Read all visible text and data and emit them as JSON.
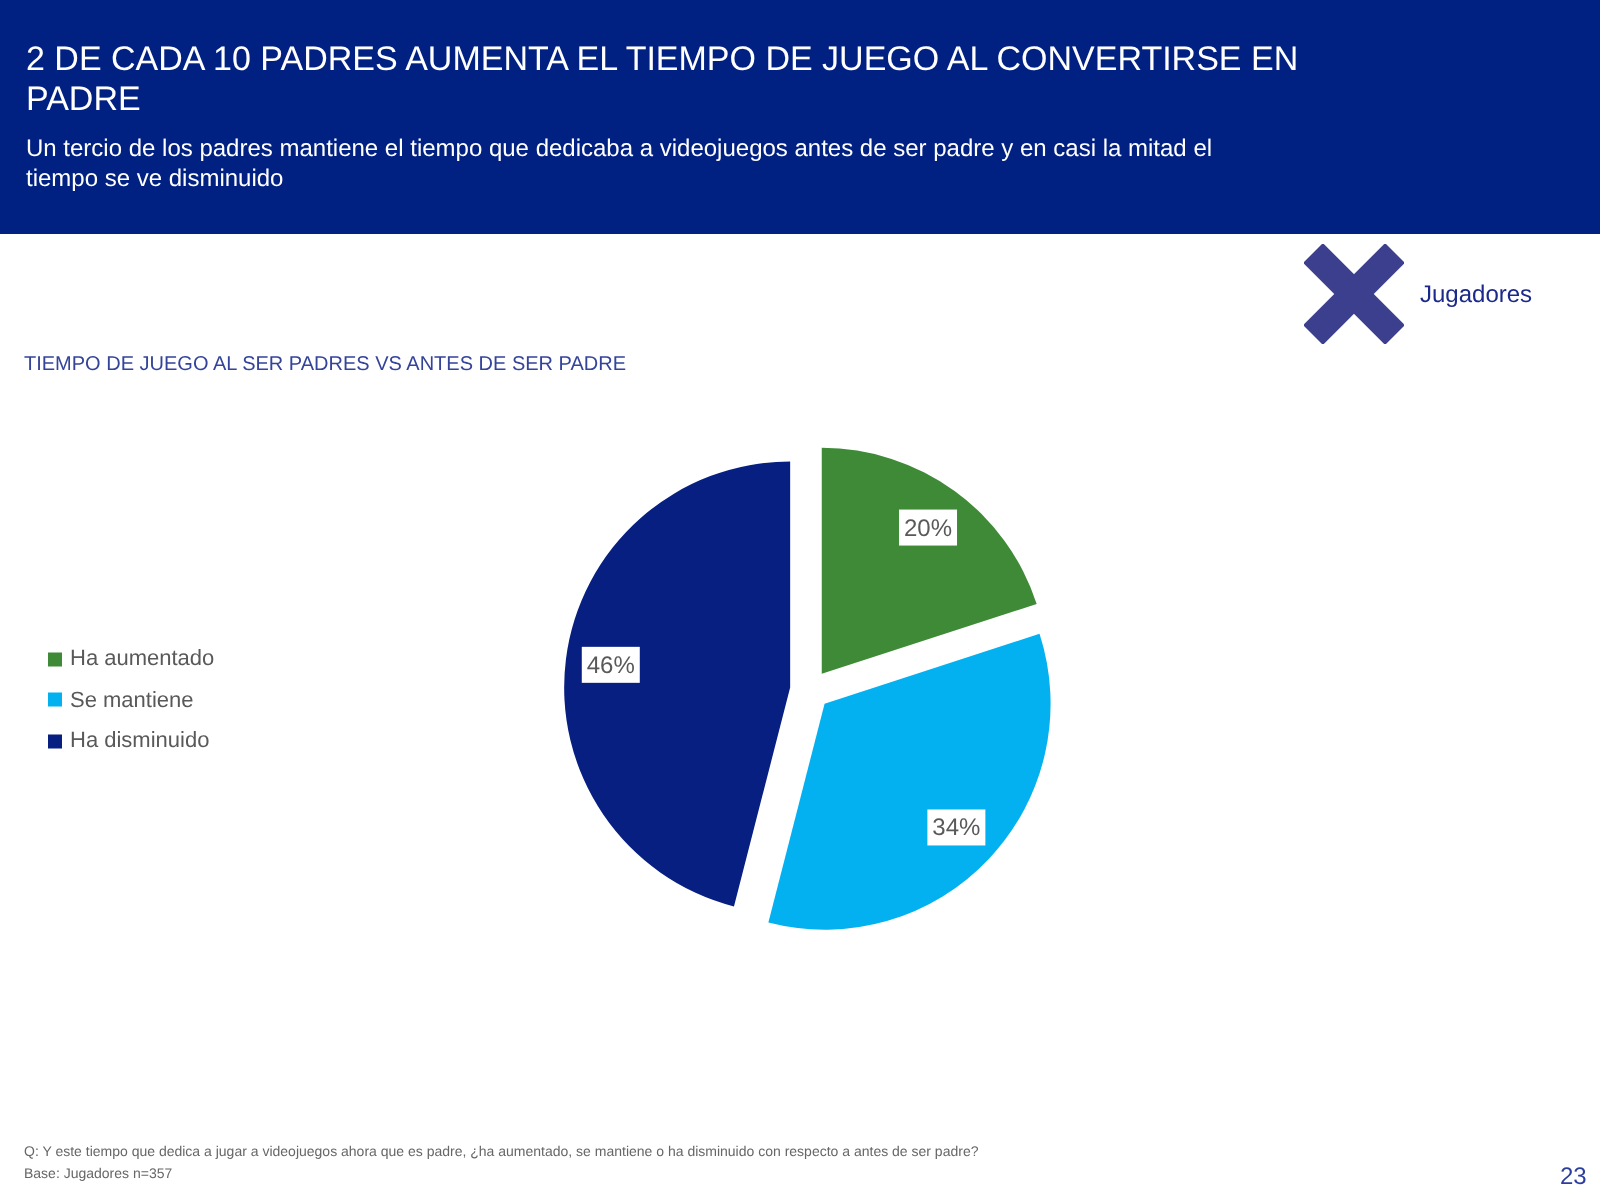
{
  "chart_data": {
    "type": "pie",
    "title": "2 DE CADA 10 PADRES AUMENTA EL TIEMPO DE JUEGO AL CONVERTIRSE EN PADRE",
    "subtitle": "Un tercio de los padres mantiene el tiempo que dedicaba a videojuegos antes de ser padre y en casi la mitad el tiempo se ve disminuido",
    "annotations": [
      "Jugadores",
      "TIEMPO DE JUEGO AL SER PADRES VS ANTES DE SER PADRE",
      "Q: Y este tiempo que dedica a jugar a videojuegos ahora que es padre, ¿ha aumentado, se mantiene o ha disminuido con respecto a antes de ser padre?",
      "Base: Jugadores n=357",
      "23"
    ],
    "categories": [
      "Ha aumentado",
      "Se mantiene",
      "Ha disminuido"
    ],
    "values": [
      20,
      34,
      46
    ],
    "colors": [
      "#3e8a37",
      "#03b1f1",
      "#071f80"
    ],
    "value_labels": [
      "20%",
      "34%",
      "46%"
    ],
    "legend": "left"
  }
}
